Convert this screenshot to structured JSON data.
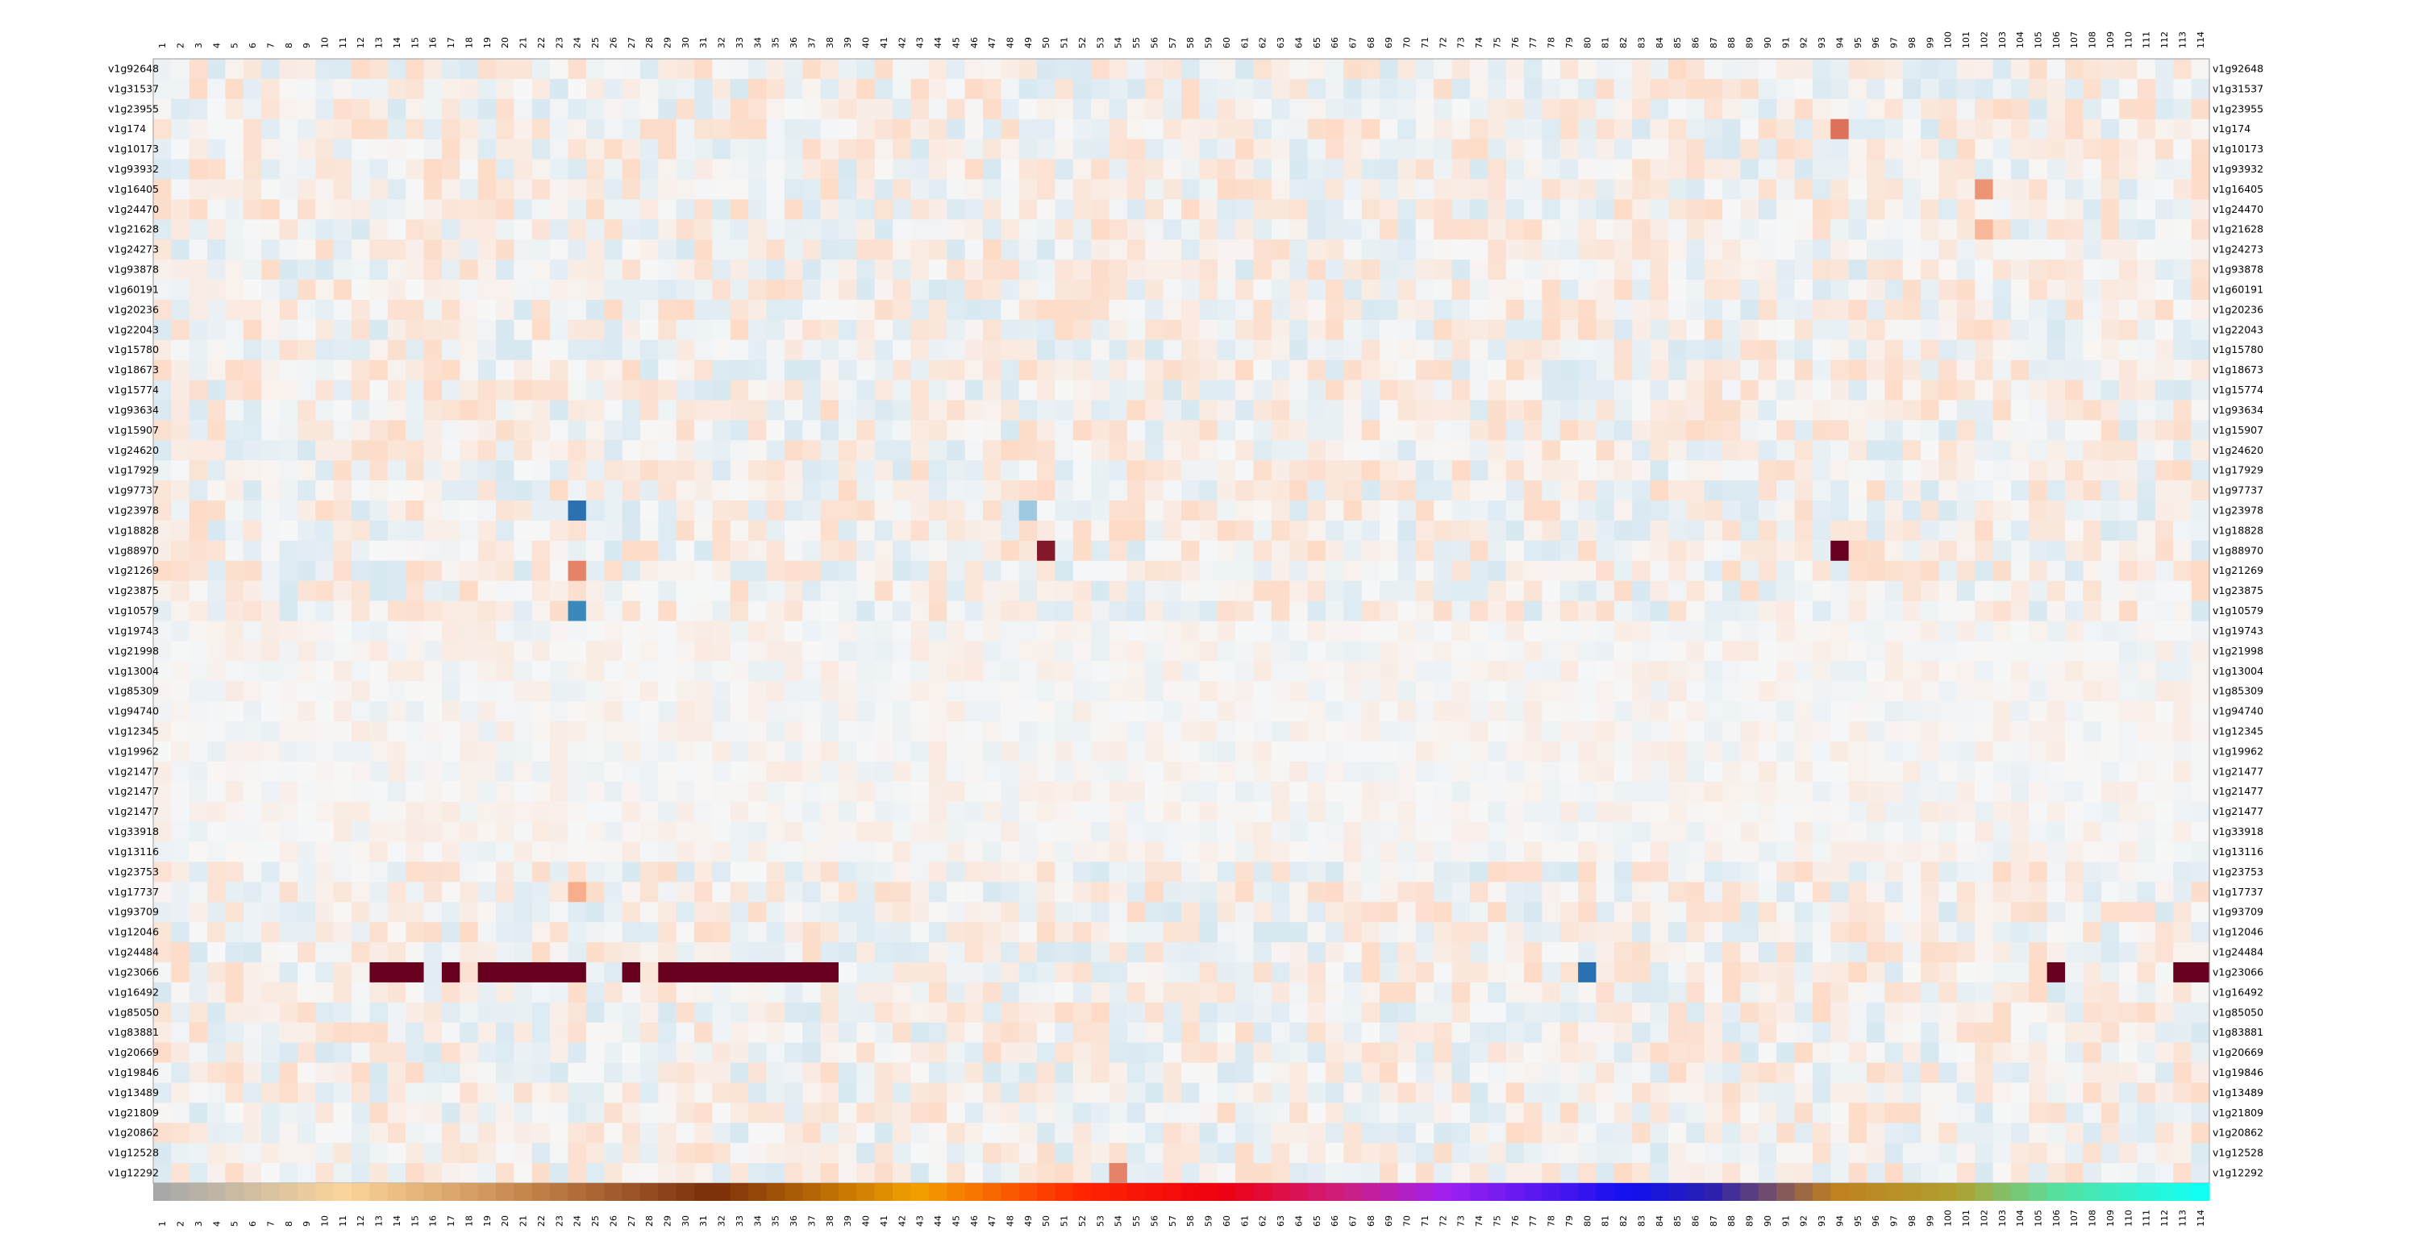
{
  "chart_data": {
    "type": "heatmap",
    "title": "",
    "xlabel": "",
    "ylabel": "",
    "columns": [
      "1",
      "2",
      "3",
      "4",
      "5",
      "6",
      "7",
      "8",
      "9",
      "10",
      "11",
      "12",
      "13",
      "14",
      "15",
      "16",
      "17",
      "18",
      "19",
      "20",
      "21",
      "22",
      "23",
      "24",
      "25",
      "26",
      "27",
      "28",
      "29",
      "30",
      "31",
      "32",
      "33",
      "34",
      "35",
      "36",
      "37",
      "38",
      "39",
      "40",
      "41",
      "42",
      "43",
      "44",
      "45",
      "46",
      "47",
      "48",
      "49",
      "50",
      "51",
      "52",
      "53",
      "54",
      "55",
      "56",
      "57",
      "58",
      "59",
      "60",
      "61",
      "62",
      "63",
      "64",
      "65",
      "66",
      "67",
      "68",
      "69",
      "70",
      "71",
      "72",
      "73",
      "74",
      "75",
      "76",
      "77",
      "78",
      "79",
      "80",
      "81",
      "82",
      "83",
      "84",
      "85",
      "86",
      "87",
      "88",
      "89",
      "90",
      "91",
      "92",
      "93",
      "94",
      "95",
      "96",
      "97",
      "98",
      "99",
      "100",
      "101",
      "102",
      "103",
      "104",
      "105",
      "106",
      "107",
      "108",
      "109",
      "110",
      "111",
      "112",
      "113",
      "114"
    ],
    "rows": [
      "v1g92648",
      "v1g31537",
      "v1g23955",
      "v1g174",
      "v1g10173",
      "v1g93932",
      "v1g16405",
      "v1g24470",
      "v1g21628",
      "v1g24273",
      "v1g93878",
      "v1g60191",
      "v1g20236",
      "v1g22043",
      "v1g15780",
      "v1g18673",
      "v1g15774",
      "v1g93634",
      "v1g15907",
      "v1g24620",
      "v1g17929",
      "v1g97737",
      "v1g23978",
      "v1g18828",
      "v1g88970",
      "v1g21269",
      "v1g23875",
      "v1g10579",
      "v1g19743",
      "v1g21998",
      "v1g13004",
      "v1g85309",
      "v1g94740",
      "v1g12345",
      "v1g19962",
      "v1g21477",
      "v1g21477",
      "v1g21477",
      "v1g33918",
      "v1g13116",
      "v1g23753",
      "v1g17737",
      "v1g93709",
      "v1g12046",
      "v1g24484",
      "v1g23066",
      "v1g16492",
      "v1g85050",
      "v1g83881",
      "v1g20669",
      "v1g19846",
      "v1g13489",
      "v1g21809",
      "v1g20862",
      "v1g12528",
      "v1g12292"
    ],
    "scale": "diverging: negative = blue, zero = light grey, positive = red",
    "color_low": "#2166ac",
    "color_mid": "#f7f7f7",
    "color_high": "#67001f",
    "highlights": [
      {
        "row": "v1g174",
        "column": "94",
        "level": 0.75
      },
      {
        "row": "v1g16405",
        "column": "102",
        "level": 0.65
      },
      {
        "row": "v1g21628",
        "column": "102",
        "level": 0.5
      },
      {
        "row": "v1g23978",
        "column": "24",
        "level": -0.95
      },
      {
        "row": "v1g23978",
        "column": "49",
        "level": -0.55
      },
      {
        "row": "v1g88970",
        "column": "50",
        "level": 0.95
      },
      {
        "row": "v1g88970",
        "column": "94",
        "level": 1.0
      },
      {
        "row": "v1g21269",
        "column": "24",
        "level": 0.7
      },
      {
        "row": "v1g10579",
        "column": "24",
        "level": -0.85
      },
      {
        "row": "v1g17737",
        "column": "24",
        "level": 0.55
      },
      {
        "row": "v1g23066",
        "column": "14",
        "level": 1.0
      },
      {
        "row": "v1g23066",
        "column": "80",
        "level": -0.95
      },
      {
        "row": "v1g23066",
        "column": "106",
        "level": 1.0
      },
      {
        "row": "v1g12292",
        "column": "54",
        "level": 0.7
      }
    ],
    "column_color_bar": "annotation strip below the heatmap, one color per column (grey, tan, orange, red, magenta, purple, blue, olive, green, cyan)",
    "grid": false,
    "legend": "none"
  }
}
